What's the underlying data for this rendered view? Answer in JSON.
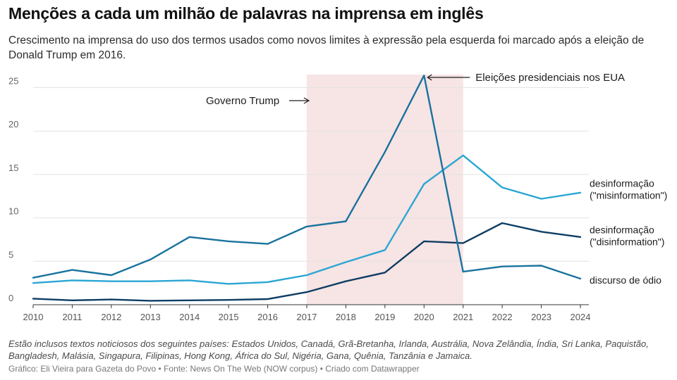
{
  "title": "Menções a cada um milhão de palavras na imprensa em inglês",
  "subtitle": "Crescimento na imprensa do uso dos termos usados como novos limites à expressão pela esquerda foi marcado após a eleição de Donald Trump em 2016.",
  "notes": "Estão inclusos textos noticiosos dos seguintes países: Estados Unidos, Canadá, Grã-Bretanha, Irlanda, Austrália, Nova Zelândia, Índia, Sri Lanka, Paquistão, Bangladesh, Malásia, Singapura, Filipinas, Hong Kong, África do Sul, Nigéria, Gana, Quênia, Tanzânia e Jamaica.",
  "footer": "Gráfico: Eli Vieira para Gazeta do Povo • Fonte: News On The Web (NOW corpus) • Criado com Datawrapper",
  "chart_data": {
    "type": "line",
    "x": [
      2010,
      2011,
      2012,
      2013,
      2014,
      2015,
      2016,
      2017,
      2018,
      2019,
      2020,
      2021,
      2022,
      2023,
      2024
    ],
    "ylim": [
      0,
      26.5
    ],
    "yticks": [
      0,
      5,
      10,
      15,
      20,
      25
    ],
    "grid": true,
    "series": [
      {
        "name": "desinformação (\"misinformation\")",
        "label_lines": [
          "desinformação",
          "(\"misinformation\")"
        ],
        "color": "#2aa6d4",
        "values": [
          2.5,
          2.8,
          2.7,
          2.7,
          2.8,
          2.4,
          2.6,
          3.4,
          4.9,
          6.3,
          13.9,
          17.2,
          13.5,
          12.2,
          12.9
        ]
      },
      {
        "name": "desinformação (\"disinformation\")",
        "label_lines": [
          "desinformação",
          "(\"disinformation\")"
        ],
        "color": "#0e3e64",
        "values": [
          0.7,
          0.5,
          0.6,
          0.45,
          0.5,
          0.55,
          0.65,
          1.45,
          2.7,
          3.7,
          7.3,
          7.1,
          9.4,
          8.4,
          7.8
        ]
      },
      {
        "name": "discurso de ódio",
        "label_lines": [
          "discurso de ódio"
        ],
        "color": "#1a729e",
        "values": [
          3.1,
          4.0,
          3.4,
          5.2,
          7.8,
          7.3,
          7.0,
          9.0,
          9.6,
          17.6,
          26.4,
          3.8,
          4.4,
          4.5,
          3.0
        ]
      }
    ],
    "shaded_range": {
      "from": 2017,
      "to": 2021,
      "color": "#f7e4e4"
    },
    "annotations": [
      {
        "text": "Governo Trump",
        "arrow": "right"
      },
      {
        "text": "Eleições presidenciais nos EUA",
        "arrow": "left"
      }
    ]
  }
}
